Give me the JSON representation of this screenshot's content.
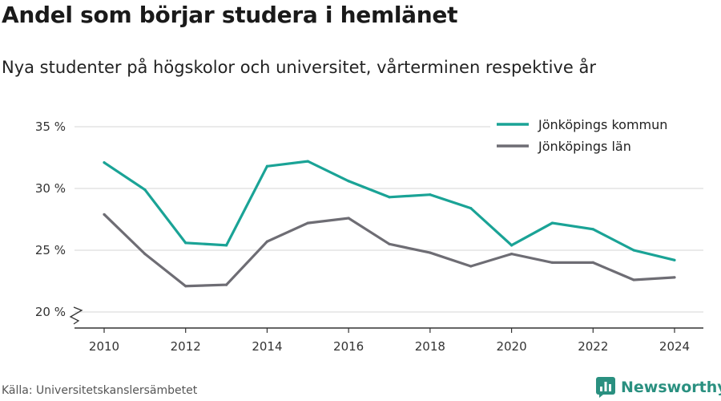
{
  "title": "Andel som börjar studera i hemlänet",
  "subtitle": "Nya studenter på högskolor och universitet, vårterminen respektive år",
  "source": "Källa: Universitetskanslersämbetet",
  "brand": {
    "name": "Newsworthy",
    "icon": "bar-chart-logo-icon",
    "color": "#2a9080"
  },
  "chart_data": {
    "type": "line",
    "x": [
      2010,
      2011,
      2012,
      2013,
      2014,
      2015,
      2016,
      2017,
      2018,
      2019,
      2020,
      2021,
      2022,
      2023,
      2024
    ],
    "x_ticks": [
      2010,
      2012,
      2014,
      2016,
      2018,
      2020,
      2022,
      2024
    ],
    "ylim": [
      20,
      35
    ],
    "y_ticks": [
      20,
      25,
      30,
      35
    ],
    "y_tick_labels": [
      "20 %",
      "25 %",
      "30 %",
      "35 %"
    ],
    "y_axis_break": true,
    "grid": "horizontal",
    "legend_position": "top-right",
    "series": [
      {
        "name": "Jönköpings kommun",
        "color": "#1aa396",
        "values": [
          32.1,
          29.9,
          25.6,
          25.4,
          31.8,
          32.2,
          30.6,
          29.3,
          29.5,
          28.4,
          25.4,
          27.2,
          26.7,
          25.0,
          24.2
        ]
      },
      {
        "name": "Jönköpings län",
        "color": "#6e6d74",
        "values": [
          27.9,
          24.7,
          22.1,
          22.2,
          25.7,
          27.2,
          27.6,
          25.5,
          24.8,
          23.7,
          24.7,
          24.0,
          24.0,
          22.6,
          22.8
        ]
      }
    ]
  }
}
